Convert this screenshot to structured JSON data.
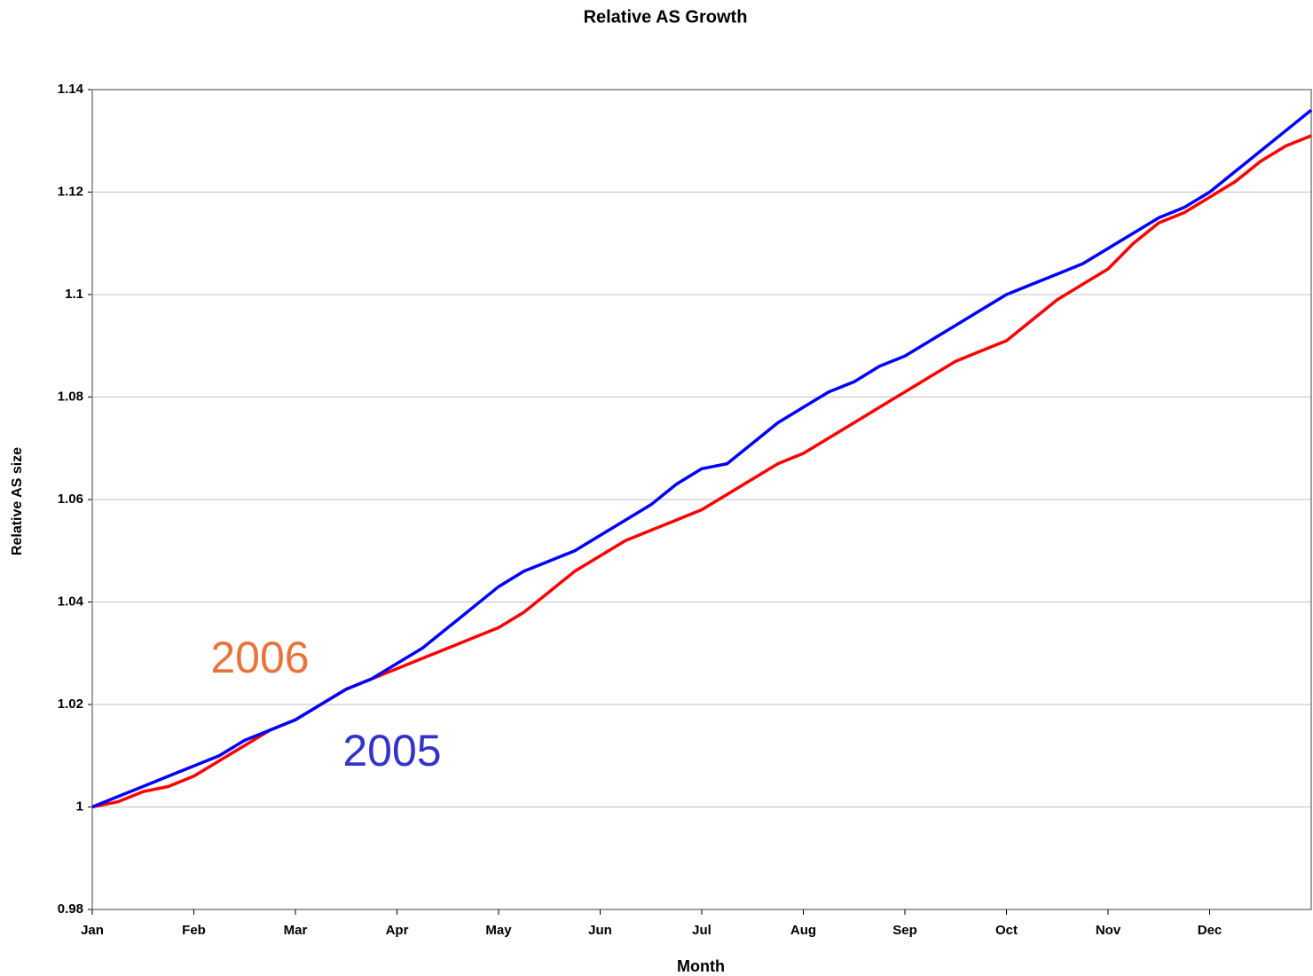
{
  "chart_data": {
    "type": "line",
    "title": "Relative AS Growth",
    "x_label": "Month",
    "y_label": "Relative AS size",
    "categories": [
      "Jan",
      null,
      null,
      null,
      "Feb",
      null,
      null,
      null,
      "Mar",
      null,
      null,
      null,
      "Apr",
      null,
      null,
      null,
      "May",
      null,
      null,
      null,
      "Jun",
      null,
      null,
      null,
      "Jul",
      null,
      null,
      null,
      "Aug",
      null,
      null,
      null,
      "Sep",
      null,
      null,
      null,
      "Oct",
      null,
      null,
      null,
      "Nov",
      null,
      null,
      null,
      "Dec",
      null,
      null,
      null,
      null
    ],
    "series": [
      {
        "name": "2005",
        "color": "#0000ff",
        "label_color": "#3333cc",
        "values": [
          1.0,
          1.002,
          1.004,
          1.006,
          1.008,
          1.01,
          1.013,
          1.015,
          1.017,
          1.02,
          1.023,
          1.025,
          1.028,
          1.031,
          1.035,
          1.039,
          1.043,
          1.046,
          1.048,
          1.05,
          1.053,
          1.056,
          1.059,
          1.063,
          1.066,
          1.067,
          1.071,
          1.075,
          1.078,
          1.081,
          1.083,
          1.086,
          1.088,
          1.091,
          1.094,
          1.097,
          1.1,
          1.102,
          1.104,
          1.106,
          1.109,
          1.112,
          1.115,
          1.117,
          1.12,
          1.124,
          1.128,
          1.132,
          1.136
        ]
      },
      {
        "name": "2006",
        "color": "#ff0000",
        "label_color": "#e8743b",
        "values": [
          1.0,
          1.001,
          1.003,
          1.004,
          1.006,
          1.009,
          1.012,
          1.015,
          1.017,
          1.02,
          1.023,
          1.025,
          1.027,
          1.029,
          1.031,
          1.033,
          1.035,
          1.038,
          1.042,
          1.046,
          1.049,
          1.052,
          1.054,
          1.056,
          1.058,
          1.061,
          1.064,
          1.067,
          1.069,
          1.072,
          1.075,
          1.078,
          1.081,
          1.084,
          1.087,
          1.089,
          1.091,
          1.095,
          1.099,
          1.102,
          1.105,
          1.11,
          1.114,
          1.116,
          1.119,
          1.122,
          1.126,
          1.129,
          1.131
        ]
      }
    ],
    "ylim": [
      0.98,
      1.14
    ],
    "yticks": [
      0.98,
      1,
      1.02,
      1.04,
      1.06,
      1.08,
      1.1,
      1.12,
      1.14
    ],
    "grid": true
  }
}
